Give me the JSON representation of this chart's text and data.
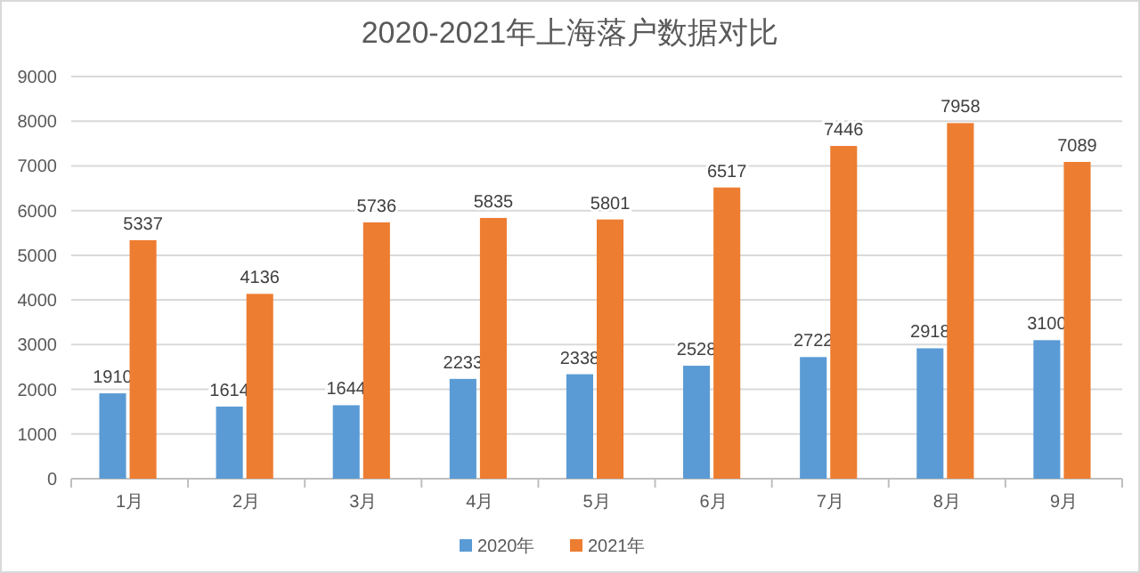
{
  "chart_data": {
    "type": "bar",
    "title": "2020-2021年上海落户数据对比",
    "categories": [
      "1月",
      "2月",
      "3月",
      "4月",
      "5月",
      "6月",
      "7月",
      "8月",
      "9月"
    ],
    "series": [
      {
        "name": "2020年",
        "color": "#5b9bd5",
        "values": [
          1910,
          1614,
          1644,
          2233,
          2338,
          2528,
          2722,
          2918,
          3100
        ]
      },
      {
        "name": "2021年",
        "color": "#ed7d31",
        "values": [
          5337,
          4136,
          5736,
          5835,
          5801,
          6517,
          7446,
          7958,
          7089
        ]
      }
    ],
    "ylim": [
      0,
      9000
    ],
    "yticks": [
      0,
      1000,
      2000,
      3000,
      4000,
      5000,
      6000,
      7000,
      8000,
      9000
    ],
    "grid": "y",
    "legend": "bottom",
    "data_labels": true
  }
}
